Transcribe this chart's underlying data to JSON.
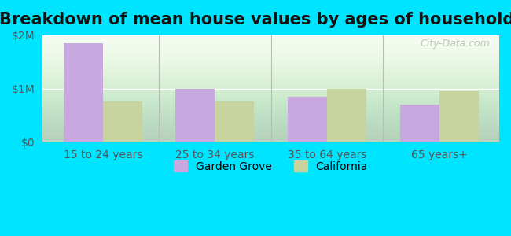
{
  "title": "Breakdown of mean house values by ages of householders",
  "categories": [
    "15 to 24 years",
    "25 to 34 years",
    "35 to 64 years",
    "65 years+"
  ],
  "garden_grove": [
    1850000,
    1000000,
    850000,
    700000
  ],
  "california": [
    750000,
    750000,
    1000000,
    950000
  ],
  "garden_grove_color": "#c9a8e0",
  "california_color": "#c8d4a0",
  "bar_width": 0.35,
  "ylim": [
    0,
    2000000
  ],
  "yticks": [
    0,
    1000000,
    2000000
  ],
  "ytick_labels": [
    "$0",
    "$1M",
    "$2M"
  ],
  "legend_garden_grove": "Garden Grove",
  "legend_california": "California",
  "watermark": "City-Data.com",
  "bg_color": "#00e5ff",
  "title_fontsize": 15,
  "tick_fontsize": 10,
  "legend_fontsize": 10
}
